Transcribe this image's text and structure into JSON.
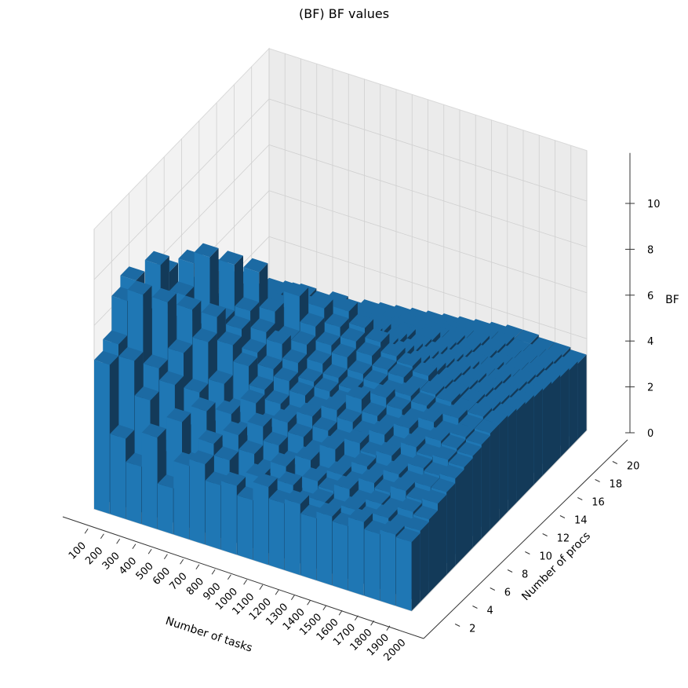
{
  "chart_data": {
    "type": "bar3d",
    "title": "(BF) BF values",
    "xlabel": "Number of tasks",
    "ylabel": "Number of procs",
    "zlabel": "BF",
    "x_ticks": [
      "100",
      "200",
      "300",
      "400",
      "500",
      "600",
      "700",
      "800",
      "900",
      "1000",
      "1100",
      "1200",
      "1300",
      "1400",
      "1500",
      "1600",
      "1700",
      "1800",
      "1900",
      "2000"
    ],
    "y_ticks": [
      "2",
      "4",
      "6",
      "8",
      "10",
      "12",
      "14",
      "16",
      "18",
      "20"
    ],
    "z_ticks": [
      "0",
      "2",
      "4",
      "6",
      "8",
      "10"
    ],
    "zlim": [
      0,
      10
    ],
    "grid": true,
    "bar_color": "#1f77b4",
    "procs": [
      1,
      2,
      3,
      4,
      5,
      6,
      7,
      8,
      9,
      10,
      11,
      12,
      13,
      14,
      15,
      16,
      17,
      18,
      19,
      20
    ],
    "values": [
      [
        6.5,
        7.0,
        8.5,
        9.0,
        7.2,
        6.0,
        4.5,
        5.0,
        4.0,
        3.5,
        3.0,
        3.2,
        2.8,
        3.5,
        3.0,
        2.5,
        2.8,
        2.6,
        2.4,
        2.2
      ],
      [
        3.5,
        6.5,
        9.0,
        8.0,
        9.5,
        8.8,
        6.0,
        5.5,
        4.5,
        4.2,
        3.8,
        3.0,
        3.5,
        3.2,
        2.8,
        3.0,
        2.6,
        2.8,
        2.5,
        2.3
      ],
      [
        2.5,
        5.0,
        6.0,
        8.5,
        7.5,
        8.0,
        9.0,
        7.5,
        6.5,
        5.0,
        4.8,
        4.2,
        3.6,
        3.8,
        3.2,
        2.9,
        3.1,
        2.7,
        2.6,
        2.4
      ],
      [
        4.0,
        3.0,
        5.5,
        6.5,
        8.0,
        7.0,
        9.5,
        8.5,
        6.0,
        4.5,
        4.0,
        4.5,
        3.8,
        3.3,
        3.0,
        3.2,
        2.8,
        2.9,
        2.5,
        2.3
      ],
      [
        2.0,
        4.5,
        4.0,
        5.0,
        6.8,
        7.5,
        7.0,
        9.0,
        7.8,
        5.5,
        5.0,
        4.2,
        3.9,
        3.5,
        3.4,
        3.0,
        3.1,
        2.8,
        2.7,
        2.5
      ],
      [
        3.2,
        2.8,
        4.8,
        4.0,
        5.2,
        6.5,
        6.8,
        7.2,
        8.5,
        6.0,
        5.2,
        4.6,
        4.1,
        3.9,
        3.3,
        3.1,
        2.9,
        3.0,
        2.6,
        2.4
      ],
      [
        3.5,
        4.0,
        3.2,
        4.5,
        4.2,
        5.8,
        6.0,
        6.5,
        7.0,
        6.8,
        5.5,
        5.0,
        4.5,
        4.0,
        3.6,
        3.4,
        3.2,
        2.9,
        2.8,
        2.6
      ],
      [
        2.8,
        3.5,
        4.2,
        3.8,
        4.8,
        5.0,
        5.5,
        6.2,
        6.0,
        7.5,
        6.2,
        5.4,
        4.8,
        4.3,
        3.9,
        3.5,
        3.3,
        3.1,
        2.9,
        2.7
      ],
      [
        3.0,
        2.5,
        3.6,
        4.4,
        4.0,
        4.6,
        5.2,
        5.6,
        6.0,
        6.4,
        6.8,
        5.8,
        5.0,
        4.5,
        4.0,
        3.7,
        3.4,
        3.2,
        3.0,
        2.8
      ],
      [
        2.6,
        3.2,
        3.0,
        3.8,
        4.4,
        4.2,
        4.8,
        5.0,
        5.4,
        5.8,
        6.2,
        6.5,
        5.4,
        4.8,
        4.2,
        3.9,
        3.6,
        3.3,
        3.1,
        2.9
      ],
      [
        3.4,
        2.9,
        3.5,
        3.2,
        4.0,
        4.5,
        4.4,
        4.8,
        5.0,
        5.5,
        5.8,
        6.0,
        5.2,
        5.0,
        4.4,
        4.0,
        3.7,
        3.5,
        3.2,
        3.0
      ],
      [
        2.9,
        3.3,
        2.8,
        3.6,
        3.5,
        4.1,
        4.6,
        4.5,
        4.7,
        5.0,
        5.4,
        5.6,
        5.0,
        4.8,
        4.6,
        4.2,
        3.9,
        3.6,
        3.3,
        3.1
      ],
      [
        3.1,
        2.7,
        3.3,
        3.0,
        3.9,
        3.8,
        4.3,
        4.9,
        4.5,
        4.8,
        5.0,
        5.2,
        4.9,
        4.6,
        4.4,
        4.3,
        4.0,
        3.7,
        3.4,
        3.2
      ],
      [
        2.7,
        3.0,
        3.1,
        3.4,
        3.3,
        4.0,
        4.0,
        4.4,
        4.8,
        4.6,
        4.9,
        5.0,
        4.7,
        4.5,
        4.3,
        4.1,
        4.0,
        3.8,
        3.5,
        3.3
      ],
      [
        3.0,
        2.8,
        3.4,
        3.2,
        3.6,
        3.7,
        4.2,
        4.1,
        4.5,
        4.7,
        4.6,
        4.8,
        4.6,
        4.4,
        4.2,
        4.0,
        3.9,
        3.8,
        3.6,
        3.4
      ],
      [
        2.8,
        3.1,
        3.0,
        3.5,
        3.4,
        3.9,
        3.8,
        4.3,
        4.2,
        4.5,
        4.6,
        4.5,
        4.4,
        4.3,
        4.1,
        3.9,
        3.8,
        3.7,
        3.6,
        3.5
      ],
      [
        3.2,
        2.9,
        3.2,
        3.3,
        3.7,
        3.6,
        4.1,
        4.0,
        4.4,
        4.3,
        4.5,
        4.4,
        4.3,
        4.2,
        4.0,
        3.9,
        3.7,
        3.6,
        3.5,
        3.5
      ],
      [
        2.9,
        3.2,
        3.1,
        3.6,
        3.5,
        3.8,
        3.9,
        4.2,
        4.1,
        4.4,
        4.3,
        4.3,
        4.2,
        4.1,
        4.0,
        3.8,
        3.7,
        3.6,
        3.5,
        3.4
      ],
      [
        3.1,
        3.0,
        3.3,
        3.4,
        3.6,
        3.7,
        4.0,
        4.1,
        4.2,
        4.2,
        4.3,
        4.2,
        4.1,
        4.0,
        3.9,
        3.8,
        3.7,
        3.6,
        3.5,
        3.4
      ],
      [
        3.0,
        3.1,
        3.2,
        3.5,
        3.6,
        3.8,
        3.9,
        4.0,
        4.1,
        4.2,
        4.2,
        4.1,
        4.0,
        3.9,
        3.8,
        3.7,
        3.6,
        3.5,
        3.4,
        3.3
      ]
    ]
  }
}
